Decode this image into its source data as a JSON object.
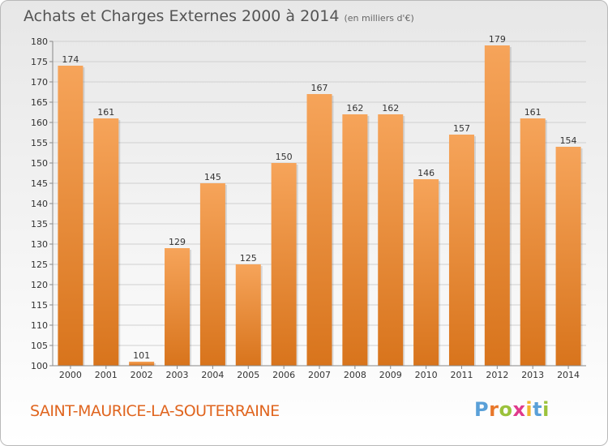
{
  "header": {
    "title": "Achats et Charges Externes 2000 à 2014",
    "unit": "(en milliers d'€)"
  },
  "footer": {
    "town": "SAINT-MAURICE-LA-SOUTERRAINE",
    "logo": "Proxiti",
    "logo_colors": [
      "#5aa0d8",
      "#e8772a",
      "#9bc23c",
      "#e03a8c",
      "#f2b52b",
      "#5aa0d8",
      "#9bc23c"
    ]
  },
  "colors": {
    "bar_top": "#f6a45a",
    "bar_bottom": "#d8741c",
    "grid": "#d0d0d0",
    "axis_text": "#333333",
    "town": "#e0651f"
  },
  "chart_data": {
    "type": "bar",
    "title": "Achats et Charges Externes 2000 à 2014",
    "subtitle": "(en milliers d'€)",
    "categories": [
      "2000",
      "2001",
      "2002",
      "2003",
      "2004",
      "2005",
      "2006",
      "2007",
      "2008",
      "2009",
      "2010",
      "2011",
      "2012",
      "2013",
      "2014"
    ],
    "values": [
      174,
      161,
      101,
      129,
      145,
      125,
      150,
      167,
      162,
      162,
      146,
      157,
      179,
      161,
      154
    ],
    "ylim": [
      100,
      180
    ],
    "yticks": [
      100,
      105,
      110,
      115,
      120,
      125,
      130,
      135,
      140,
      145,
      150,
      155,
      160,
      165,
      170,
      175,
      180
    ],
    "grid": true,
    "data_labels": true
  }
}
